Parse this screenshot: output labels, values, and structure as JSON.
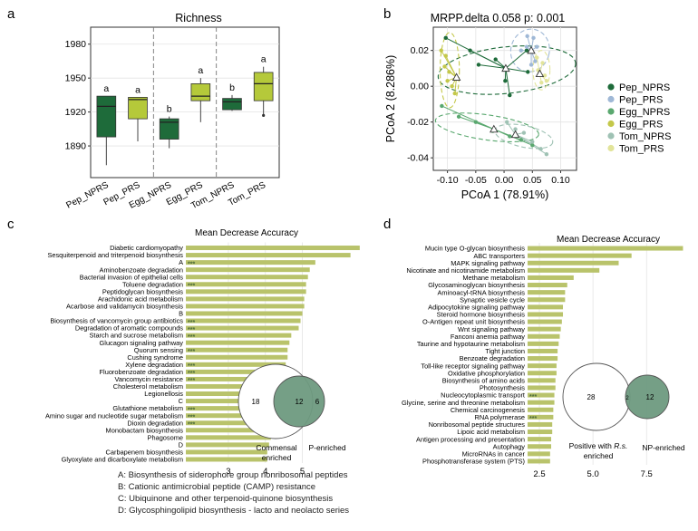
{
  "colors": {
    "pep_nprs": "#1e6b3a",
    "pep_prs": "#9fb8d6",
    "egg_nprs": "#5aa86f",
    "egg_prs": "#c4c84a",
    "tom_nprs": "#9fc2b4",
    "tom_prs": "#e2e49a",
    "box_dark": "#1e6b3a",
    "box_light": "#b5c93a",
    "bar": "#b9c36b",
    "venn_fill": "#6e9a80",
    "grid": "#e4e4e4"
  },
  "panels": {
    "a": "a",
    "b": "b",
    "c": "c",
    "d": "d"
  },
  "chart_data": [
    {
      "id": "a",
      "type": "boxplot",
      "title": "Richness",
      "ylim": [
        1862,
        1995
      ],
      "yticks": [
        1890,
        1920,
        1950,
        1980
      ],
      "categories": [
        "Pep_NPRS",
        "Pep_PRS",
        "Egg_NPRS",
        "Egg_PRS",
        "Tom_NPRS",
        "Tom_PRS"
      ],
      "fills": [
        "box_dark",
        "box_light",
        "box_dark",
        "box_light",
        "box_dark",
        "box_light"
      ],
      "letters": [
        "a",
        "a",
        "b",
        "a",
        "b",
        "a"
      ],
      "boxes": [
        {
          "min": 1873,
          "q1": 1898,
          "median": 1925,
          "q3": 1934,
          "max": 1934
        },
        {
          "min": 1894,
          "q1": 1914,
          "median": 1931,
          "q3": 1933,
          "max": 1933
        },
        {
          "min": 1888,
          "q1": 1896,
          "median": 1911,
          "q3": 1914,
          "max": 1916
        },
        {
          "min": 1911,
          "q1": 1930,
          "median": 1934,
          "q3": 1945,
          "max": 1950
        },
        {
          "min": 1921,
          "q1": 1922,
          "median": 1929,
          "q3": 1932,
          "max": 1935
        },
        {
          "min": 1917,
          "q1": 1930,
          "median": 1945,
          "q3": 1955,
          "max": 1960
        }
      ],
      "outliers": [
        [
          5,
          1917
        ]
      ]
    },
    {
      "id": "b",
      "type": "scatter",
      "title": "MRPP.delta 0.058 p: 0.001",
      "xlabel": "PCoA 1 (78.91%)",
      "ylabel": "PCoA 2 (8.286%)",
      "xlim": [
        -0.125,
        0.128
      ],
      "ylim": [
        -0.047,
        0.033
      ],
      "xticks": [
        -0.1,
        -0.05,
        0,
        0.05,
        0.1
      ],
      "xtick_labels": [
        "-0.10",
        "-0.05",
        "0.00",
        "0.05",
        "0.10"
      ],
      "yticks": [
        -0.04,
        -0.02,
        0,
        0.02
      ],
      "ytick_labels": [
        "-0.04",
        "-0.02",
        "0.00",
        "0.02"
      ],
      "legend": [
        "Pep_NPRS",
        "Pep_PRS",
        "Egg_NPRS",
        "Egg_PRS",
        "Tom_NPRS",
        "Tom_PRS"
      ],
      "series": [
        {
          "name": "Pep_NPRS",
          "color": "pep_nprs",
          "centroid": [
            0.003,
            0.01
          ],
          "points": [
            [
              -0.103,
              0.027
            ],
            [
              -0.06,
              0.02
            ],
            [
              -0.045,
              0.012
            ],
            [
              0.01,
              -0.005
            ],
            [
              0.04,
              0.02
            ],
            [
              0.042,
              0.008
            ],
            [
              0.002,
              0.003
            ],
            [
              -0.015,
              0.015
            ]
          ],
          "ellipse": {
            "cx": 0.005,
            "cy": 0.009,
            "rx": 0.122,
            "ry": 0.013,
            "angle": 6
          }
        },
        {
          "name": "Pep_PRS",
          "color": "pep_prs",
          "centroid": [
            0.048,
            0.02
          ],
          "points": [
            [
              0.041,
              0.028
            ],
            [
              0.052,
              0.027
            ],
            [
              0.058,
              0.022
            ],
            [
              0.055,
              0.014
            ],
            [
              0.04,
              0.022
            ],
            [
              0.03,
              0.02
            ],
            [
              0.048,
              0.012
            ]
          ],
          "ellipse": {
            "cx": 0.046,
            "cy": 0.02,
            "rx": 0.034,
            "ry": 0.012,
            "angle": -15
          }
        },
        {
          "name": "Egg_NPRS",
          "color": "egg_nprs",
          "centroid": [
            -0.018,
            -0.024
          ],
          "points": [
            [
              -0.11,
              -0.011
            ],
            [
              -0.08,
              -0.017
            ],
            [
              -0.05,
              -0.02
            ],
            [
              -0.02,
              -0.025
            ],
            [
              0.01,
              -0.028
            ],
            [
              0.03,
              -0.03
            ],
            [
              0.05,
              -0.033
            ]
          ],
          "ellipse": {
            "cx": -0.03,
            "cy": -0.023,
            "rx": 0.092,
            "ry": 0.007,
            "angle": -8
          }
        },
        {
          "name": "Egg_PRS",
          "color": "egg_prs",
          "centroid": [
            -0.084,
            0.005
          ],
          "points": [
            [
              -0.111,
              0.02
            ],
            [
              -0.103,
              0.017
            ],
            [
              -0.097,
              0.008
            ],
            [
              -0.092,
              0.0
            ],
            [
              -0.1,
              0.003
            ],
            [
              -0.087,
              -0.004
            ],
            [
              -0.105,
              0.011
            ]
          ],
          "ellipse": {
            "cx": -0.096,
            "cy": 0.009,
            "rx": 0.017,
            "ry": 0.021,
            "angle": 0
          }
        },
        {
          "name": "Tom_NPRS",
          "color": "tom_nprs",
          "centroid": [
            0.02,
            -0.027
          ],
          "points": [
            [
              0.005,
              -0.02
            ],
            [
              0.02,
              -0.024
            ],
            [
              0.035,
              -0.026
            ],
            [
              0.05,
              -0.031
            ],
            [
              0.065,
              -0.035
            ],
            [
              0.075,
              -0.038
            ]
          ],
          "ellipse": {
            "cx": 0.035,
            "cy": -0.028,
            "rx": 0.052,
            "ry": 0.006,
            "angle": -12
          }
        },
        {
          "name": "Tom_PRS",
          "color": "tom_prs",
          "centroid": [
            0.063,
            0.007
          ],
          "points": [
            [
              0.058,
              0.016
            ],
            [
              0.068,
              0.013
            ],
            [
              0.072,
              0.006
            ],
            [
              0.066,
              0.002
            ],
            [
              0.075,
              0.003
            ],
            [
              0.06,
              0.009
            ]
          ],
          "ellipse": {
            "cx": 0.066,
            "cy": 0.009,
            "rx": 0.015,
            "ry": 0.011,
            "angle": 0
          }
        }
      ]
    },
    {
      "id": "c",
      "type": "bar",
      "orientation": "horizontal",
      "title": "Mean Decrease Accuracy",
      "xlim": [
        1.85,
        6.75
      ],
      "xticks": [
        3,
        4,
        5
      ],
      "categories": [
        "Diabetic cardiomyopathy",
        "Sesquiterpenoid and triterpenoid biosynthesis",
        "A",
        "Aminobenzoate degradation",
        "Bacterial invasion of epithelial cells",
        "Toluene degradation",
        "Peptidoglycan biosynthesis",
        "Arachidonic acid metabolism",
        "Acarbose and validamycin biosynthesis",
        "B",
        "Biosynthesis of vancomycin group antibiotics",
        "Degradation of aromatic compounds",
        "Starch and sucrose metabolism",
        "Glucagon signaling pathway",
        "Quorum sensing",
        "Cushing syndrome",
        "Xylene degradation",
        "Fluorobenzoate degradation",
        "Vancomycin resistance",
        "Cholesterol metabolism",
        "Legionellosis",
        "C",
        "Glutathione metabolism",
        "Amino sugar and nucleotide sugar metabolism",
        "Dioxin degradation",
        "Monobactam biosynthesis",
        "Phagosome",
        "D",
        "Carbapenem biosynthesis",
        "Glyoxylate and dicarboxylate metabolism"
      ],
      "values": [
        6.55,
        6.3,
        5.35,
        5.2,
        5.15,
        5.1,
        5.1,
        5.05,
        5.05,
        5.0,
        4.95,
        4.9,
        4.7,
        4.65,
        4.6,
        4.6,
        4.55,
        4.5,
        4.5,
        4.45,
        4.4,
        4.35,
        4.3,
        4.3,
        4.3,
        4.25,
        4.15,
        4.1,
        4.05,
        4.05
      ],
      "significance": [
        "",
        "",
        "***",
        "",
        "",
        "***",
        "",
        "",
        "",
        "",
        "***",
        "***",
        "***",
        "",
        "***",
        "",
        "***",
        "***",
        "***",
        "",
        "",
        "",
        "***",
        "***",
        "***",
        "",
        "",
        "",
        "",
        ""
      ],
      "venn": {
        "left_only": "18",
        "both": "12",
        "right_only": "6",
        "left_label": "Commensal\nenriched",
        "right_label": "P-enriched"
      }
    },
    {
      "id": "d",
      "type": "bar",
      "orientation": "horizontal",
      "title": "Mean Decrease Accuracy",
      "xlim": [
        1.95,
        9.9
      ],
      "xticks": [
        2.5,
        5.0,
        7.5
      ],
      "xtick_labels": [
        "2.5",
        "5.0",
        "7.5"
      ],
      "categories": [
        "Mucin type O-glycan biosynthesis",
        "ABC transporters",
        "MAPK signaling pathway",
        "Nicotinate and nicotinamide metabolism",
        "Methane metabolism",
        "Glycosaminoglycan biosynthesis",
        "Aminoacyl-tRNA biosynthesis",
        "Synaptic vesicle cycle",
        "Adipocytokine signaling pathway",
        "Steroid hormone biosynthesis",
        "O-Antigen repeat unit biosynthesis",
        "Wnt signaling pathway",
        "Fanconi anemia pathway",
        "Taurine and hypotaurine metabolism",
        "Tight junction",
        "Benzoate degradation",
        "Toll-like receptor signaling pathway",
        "Oxidative phosphorylation",
        "Biosynthesis of amino acids",
        "Photosynthesis",
        "Nucleocytoplasmic transport",
        "Glycine, serine and threonine metabolism",
        "Chemical carcinogenesis",
        "RNA polymerase",
        "Nonribosomal peptide structures",
        "Lipoic acid metabolism",
        "Antigen processing and presentation",
        "Autophagy",
        "MicroRNAs in cancer",
        "Phosphotransferase system (PTS)"
      ],
      "values": [
        9.2,
        6.8,
        6.2,
        5.3,
        4.1,
        3.8,
        3.7,
        3.7,
        3.6,
        3.6,
        3.55,
        3.5,
        3.45,
        3.4,
        3.35,
        3.35,
        3.3,
        3.3,
        3.25,
        3.25,
        3.2,
        3.2,
        3.15,
        3.15,
        3.1,
        3.1,
        3.05,
        3.05,
        3.0,
        3.0
      ],
      "significance": [
        "",
        "",
        "",
        "",
        "",
        "",
        "",
        "",
        "",
        "",
        "",
        "",
        "",
        "",
        "",
        "",
        "",
        "",
        "",
        "",
        "***",
        "",
        "",
        "***",
        "",
        "",
        "",
        "",
        "",
        ""
      ],
      "venn": {
        "left_only": "28",
        "both": "2",
        "right_only": "12",
        "left_label_prefix": "Positive with ",
        "left_label_species": "R.s.",
        "left_label_suffix": "enriched",
        "right_label": "NP-enriched"
      }
    }
  ],
  "footnotes": [
    "A: Biosynthesis of siderophore group nonribosomal peptides",
    "B: Cationic antimicrobial peptide (CAMP) resistance",
    "C: Ubiquinone and other terpenoid-quinone biosynthesis",
    "D: Glycosphingolipid biosynthesis - lacto and neolacto series"
  ]
}
